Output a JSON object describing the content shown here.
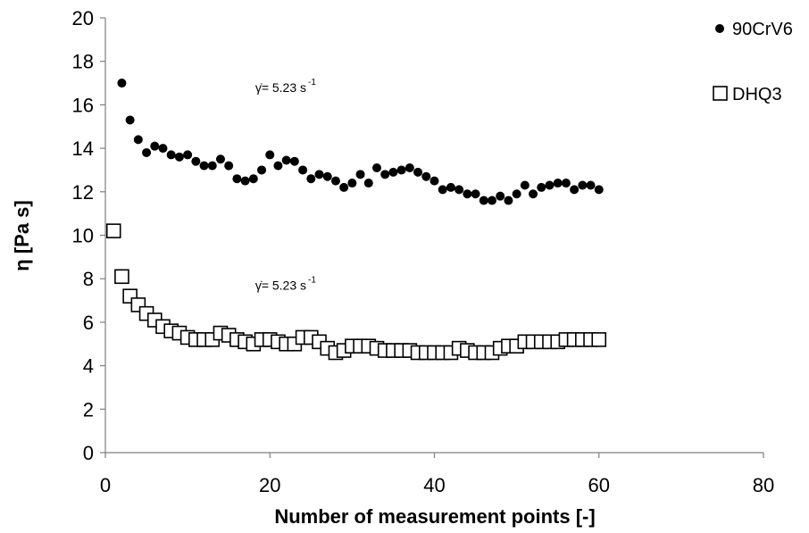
{
  "chart_data": {
    "type": "scatter",
    "title": "",
    "xlabel": "Number of measurement points [-]",
    "ylabel": "η [Pa s]",
    "xlim": [
      0,
      80
    ],
    "ylim": [
      0,
      20
    ],
    "xticks": [
      "0",
      "20",
      "40",
      "60",
      "80"
    ],
    "yticks": [
      "0",
      "2",
      "4",
      "6",
      "8",
      "10",
      "12",
      "14",
      "16",
      "18",
      "20"
    ],
    "grid": false,
    "legend_position": "top-right",
    "annotations": [
      {
        "symbol": "γ̇",
        "eq": "= 5.23 s",
        "sup": "-1",
        "at": [
          18,
          16.6
        ]
      },
      {
        "symbol": "γ̇",
        "eq": "= 5.23 s",
        "sup": "-1",
        "at": [
          18,
          7.5
        ]
      }
    ],
    "series": [
      {
        "name": "90CrV6",
        "marker": "filled-circle",
        "color": "#000000",
        "x": [
          2,
          3,
          4,
          5,
          6,
          7,
          8,
          9,
          10,
          11,
          12,
          13,
          14,
          15,
          16,
          17,
          18,
          19,
          20,
          21,
          22,
          23,
          24,
          25,
          26,
          27,
          28,
          29,
          30,
          31,
          32,
          33,
          34,
          35,
          36,
          37,
          38,
          39,
          40,
          41,
          42,
          43,
          44,
          45,
          46,
          47,
          48,
          49,
          50,
          51,
          52,
          53,
          54,
          55,
          56,
          57,
          58,
          59,
          60
        ],
        "y": [
          17.0,
          15.3,
          14.4,
          13.8,
          14.1,
          14.0,
          13.7,
          13.6,
          13.7,
          13.4,
          13.2,
          13.2,
          13.5,
          13.2,
          12.6,
          12.5,
          12.6,
          13.0,
          13.7,
          13.2,
          13.45,
          13.4,
          13.0,
          12.6,
          12.8,
          12.7,
          12.5,
          12.2,
          12.4,
          12.8,
          12.4,
          13.1,
          12.8,
          12.9,
          13.0,
          13.1,
          12.9,
          12.7,
          12.5,
          12.1,
          12.2,
          12.1,
          11.9,
          11.9,
          11.6,
          11.6,
          11.8,
          11.6,
          11.9,
          12.3,
          11.9,
          12.2,
          12.3,
          12.4,
          12.4,
          12.1,
          12.3,
          12.3,
          12.1
        ]
      },
      {
        "name": "DHQ3",
        "marker": "open-square",
        "color": "#000000",
        "x": [
          1,
          2,
          3,
          4,
          5,
          6,
          7,
          8,
          9,
          10,
          11,
          12,
          13,
          14,
          15,
          16,
          17,
          18,
          19,
          20,
          21,
          22,
          23,
          24,
          25,
          26,
          27,
          28,
          29,
          30,
          31,
          32,
          33,
          34,
          35,
          36,
          37,
          38,
          39,
          40,
          41,
          42,
          43,
          44,
          45,
          46,
          47,
          48,
          49,
          50,
          51,
          52,
          53,
          54,
          55,
          56,
          57,
          58,
          59,
          60
        ],
        "y": [
          10.2,
          8.1,
          7.2,
          6.8,
          6.4,
          6.1,
          5.8,
          5.6,
          5.5,
          5.3,
          5.2,
          5.2,
          5.2,
          5.5,
          5.4,
          5.2,
          5.1,
          5.0,
          5.2,
          5.2,
          5.1,
          5.0,
          5.0,
          5.3,
          5.3,
          5.1,
          4.8,
          4.6,
          4.7,
          4.9,
          4.9,
          4.9,
          4.8,
          4.7,
          4.7,
          4.7,
          4.7,
          4.6,
          4.6,
          4.6,
          4.6,
          4.6,
          4.8,
          4.7,
          4.6,
          4.6,
          4.6,
          4.8,
          4.9,
          4.9,
          5.1,
          5.1,
          5.1,
          5.1,
          5.1,
          5.2,
          5.2,
          5.2,
          5.2,
          5.2
        ]
      }
    ]
  }
}
